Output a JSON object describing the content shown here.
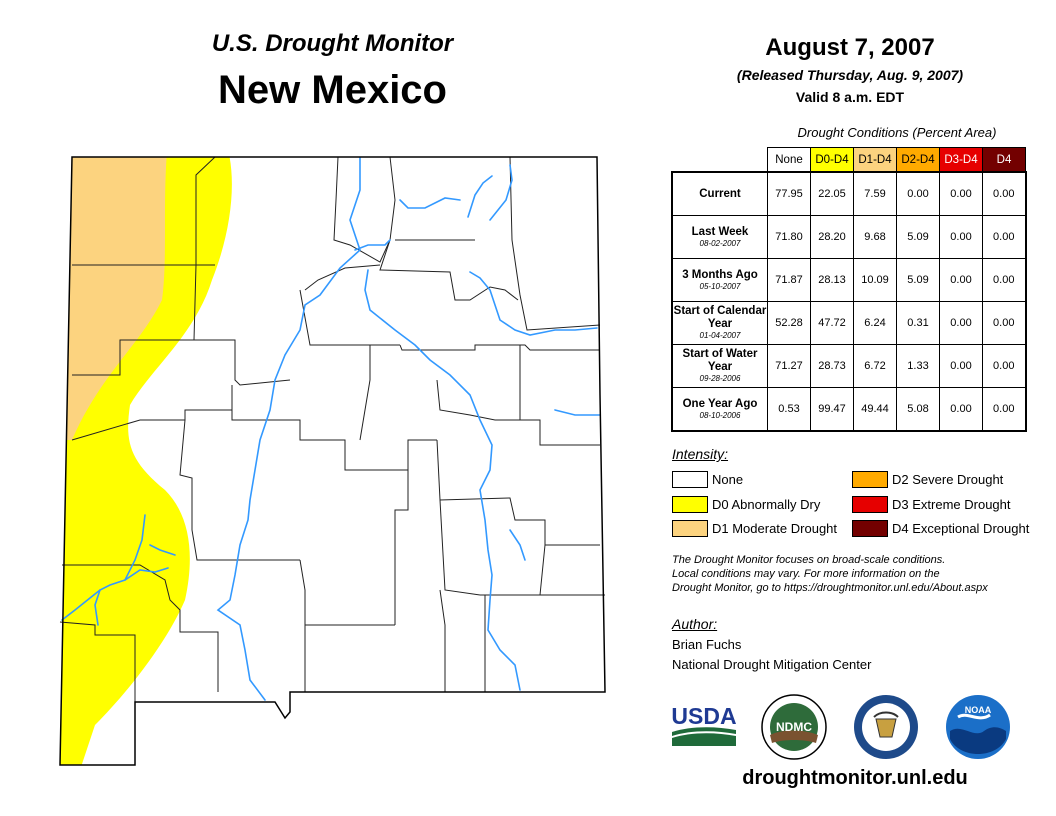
{
  "header": {
    "subtitle": "U.S. Drought Monitor",
    "state": "New Mexico"
  },
  "release": {
    "date": "August 7, 2007",
    "released": "(Released Thursday, Aug. 9, 2007)",
    "valid": "Valid 8 a.m. EDT"
  },
  "conditions": {
    "title": "Drought Conditions (Percent Area)",
    "columns": [
      "None",
      "D0-D4",
      "D1-D4",
      "D2-D4",
      "D3-D4",
      "D4"
    ],
    "column_colors": [
      "#ffffff",
      "#ffff00",
      "#fcd37f",
      "#ffaa00",
      "#e60000",
      "#730000"
    ],
    "rows": [
      {
        "label": "Current",
        "date": "",
        "values": [
          "77.95",
          "22.05",
          "7.59",
          "0.00",
          "0.00",
          "0.00"
        ]
      },
      {
        "label": "Last Week",
        "date": "08-02-2007",
        "values": [
          "71.80",
          "28.20",
          "9.68",
          "5.09",
          "0.00",
          "0.00"
        ]
      },
      {
        "label": "3 Months Ago",
        "date": "05-10-2007",
        "values": [
          "71.87",
          "28.13",
          "10.09",
          "5.09",
          "0.00",
          "0.00"
        ]
      },
      {
        "label": "Start of Calendar Year",
        "date": "01-04-2007",
        "values": [
          "52.28",
          "47.72",
          "6.24",
          "0.31",
          "0.00",
          "0.00"
        ]
      },
      {
        "label": "Start of Water Year",
        "date": "09-28-2006",
        "values": [
          "71.27",
          "28.73",
          "6.72",
          "1.33",
          "0.00",
          "0.00"
        ]
      },
      {
        "label": "One Year Ago",
        "date": "08-10-2006",
        "values": [
          "0.53",
          "99.47",
          "49.44",
          "5.08",
          "0.00",
          "0.00"
        ]
      }
    ]
  },
  "intensity": {
    "title": "Intensity:",
    "items": [
      {
        "label": "None",
        "color": "#ffffff"
      },
      {
        "label": "D0 Abnormally Dry",
        "color": "#ffff00"
      },
      {
        "label": "D1 Moderate Drought",
        "color": "#fcd37f"
      },
      {
        "label": "D2 Severe Drought",
        "color": "#ffaa00"
      },
      {
        "label": "D3 Extreme Drought",
        "color": "#e60000"
      },
      {
        "label": "D4 Exceptional Drought",
        "color": "#730000"
      }
    ]
  },
  "note": {
    "line1": "The Drought Monitor focuses on broad-scale conditions.",
    "line2": "Local conditions may vary. For more information on the",
    "line3": "Drought Monitor, go to https://droughtmonitor.unl.edu/About.aspx"
  },
  "author": {
    "title": "Author:",
    "name": "Brian Fuchs",
    "org": "National Drought Mitigation Center"
  },
  "logos": {
    "usda": "USDA",
    "ndmc": "NDMC",
    "noaa": "NOAA"
  },
  "website": "droughtmonitor.unl.edu",
  "colors": {
    "river": "#3399ff",
    "d0": "#ffff00",
    "d1": "#fcd37f"
  }
}
